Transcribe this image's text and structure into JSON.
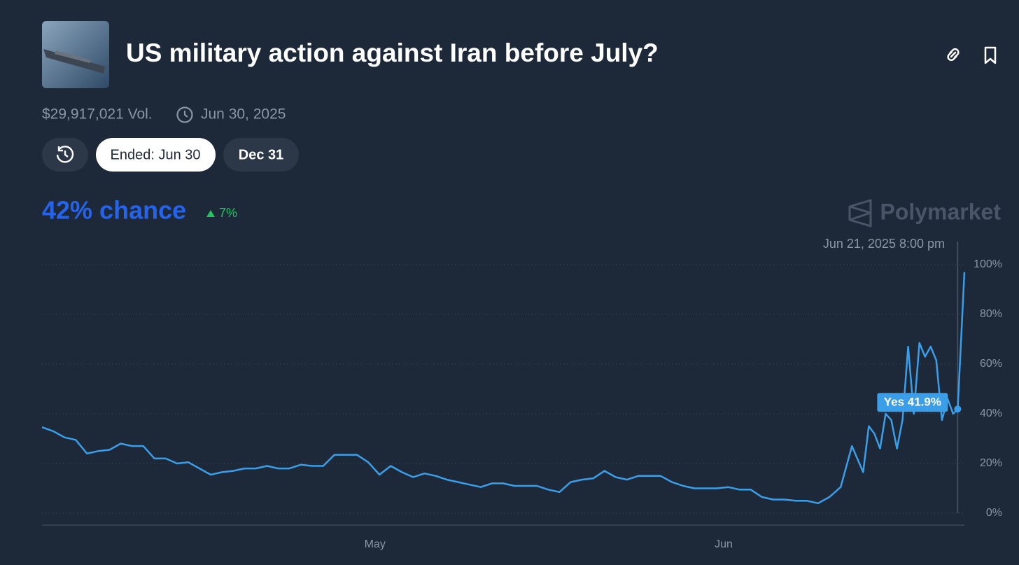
{
  "header": {
    "title": "US military action against Iran before July?",
    "volume": "$29,917,021 Vol.",
    "end_date": "Jun 30, 2025"
  },
  "buttons": [
    "Ended: Jun 30",
    "Dec 31"
  ],
  "chance": "42% chance",
  "change": "7%",
  "brand": "Polymarket",
  "chart_data": {
    "type": "line",
    "x": [
      0,
      1,
      2,
      3,
      4,
      5,
      6,
      7,
      8,
      9,
      10,
      11,
      12,
      13,
      14,
      15,
      16,
      17,
      18,
      19,
      20,
      21,
      22,
      23,
      24,
      25,
      26,
      27,
      28,
      29,
      30,
      31,
      32,
      33,
      34,
      35,
      36,
      37,
      38,
      39,
      40,
      41,
      42,
      43,
      44,
      45,
      46,
      47,
      48,
      49,
      50,
      51,
      52,
      53,
      54,
      55,
      56,
      57,
      58,
      59,
      60,
      61,
      62,
      63,
      64,
      65,
      66,
      67,
      68,
      69,
      70,
      71,
      72,
      73,
      73.5,
      74,
      74.5,
      75,
      75.5,
      76,
      76.5,
      77,
      77.5,
      78,
      78.5,
      79,
      79.5,
      80,
      80.5,
      81,
      81.4,
      82
    ],
    "series": [
      {
        "name": "Yes",
        "color": "#3b9ee8",
        "values": [
          34.6,
          33,
          30.5,
          29.5,
          24,
          25,
          25.5,
          28,
          27,
          27,
          22,
          22,
          20,
          20.5,
          18,
          15.5,
          16.5,
          17,
          18,
          18,
          19,
          18,
          18,
          19.5,
          19,
          19,
          23.5,
          23.5,
          23.5,
          20.5,
          15.5,
          19,
          16.5,
          14.5,
          16,
          15,
          13.5,
          12.5,
          11.5,
          10.5,
          12,
          12,
          11,
          11,
          11,
          9.5,
          8.5,
          12.5,
          13.5,
          14,
          17,
          14.5,
          13.5,
          15,
          15,
          15,
          12.5,
          11,
          10,
          10,
          10,
          10.5,
          9.5,
          9.5,
          6.5,
          5.5,
          5.5,
          5,
          5,
          4,
          6.5,
          10.5,
          27,
          16.5,
          35,
          32,
          26,
          40,
          37.5,
          26,
          37.5,
          67,
          40,
          68.5,
          63,
          67,
          61.5,
          37.5,
          46,
          40,
          41.9,
          97
        ]
      }
    ],
    "xlim": [
      0,
      82
    ],
    "xticks": [
      {
        "value": 29.6,
        "label": "May"
      },
      {
        "value": 60.6,
        "label": "Jun"
      }
    ],
    "ylim": [
      0,
      100
    ],
    "yticks": [
      {
        "value": 0,
        "label": "0%"
      },
      {
        "value": 20,
        "label": "20%"
      },
      {
        "value": 40,
        "label": "40%"
      },
      {
        "value": 60,
        "label": "60%"
      },
      {
        "value": 80,
        "label": "80%"
      },
      {
        "value": 100,
        "label": "100%"
      }
    ],
    "grid": true,
    "hover": {
      "date": "Jun 21, 2025 8:00 pm",
      "label": "Yes 41.9%",
      "value": 41.9,
      "index": 90
    }
  }
}
